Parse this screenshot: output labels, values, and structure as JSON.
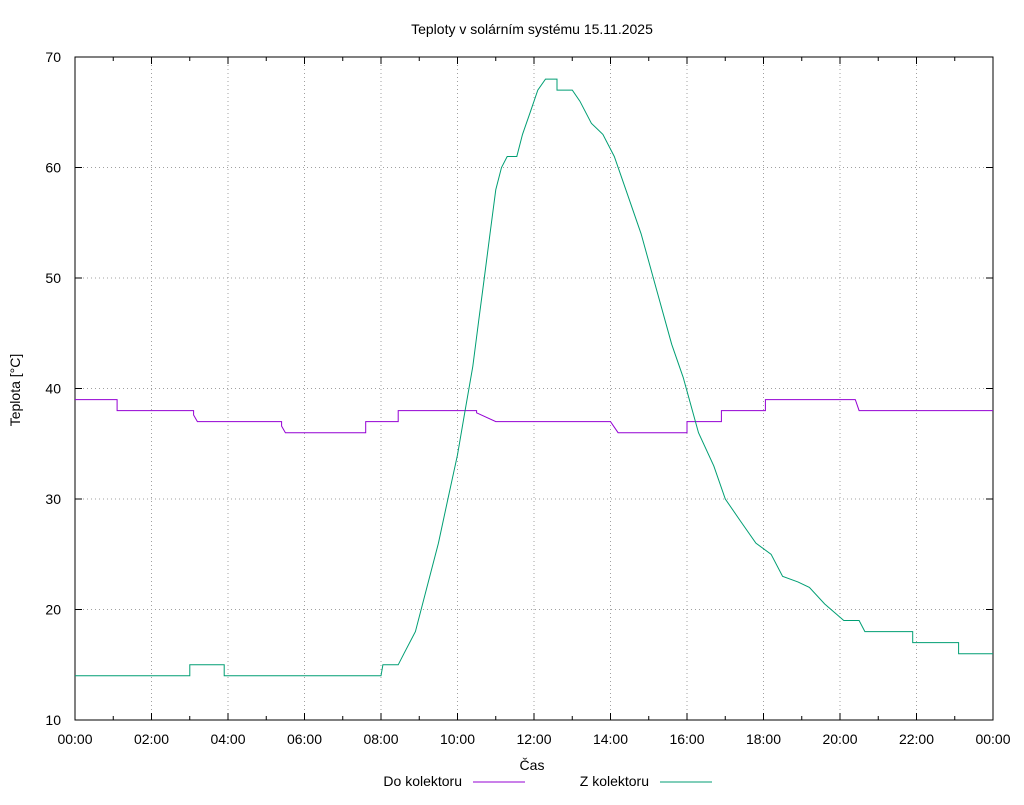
{
  "chart_data": {
    "type": "line",
    "title": "Teploty v solárním systému 15.11.2025",
    "xlabel": "Čas",
    "ylabel": "Teplota [°C]",
    "xlim": [
      0,
      24
    ],
    "ylim": [
      10,
      70
    ],
    "grid": true,
    "legend_position": "bottom-center",
    "x_ticks": [
      0,
      2,
      4,
      6,
      8,
      10,
      12,
      14,
      16,
      18,
      20,
      22,
      24
    ],
    "x_tick_labels": [
      "00:00",
      "02:00",
      "04:00",
      "06:00",
      "08:00",
      "10:00",
      "12:00",
      "14:00",
      "16:00",
      "18:00",
      "20:00",
      "22:00",
      "00:00"
    ],
    "y_ticks": [
      10,
      20,
      30,
      40,
      50,
      60,
      70
    ],
    "y_tick_labels": [
      "10",
      "20",
      "30",
      "40",
      "50",
      "60",
      "70"
    ],
    "series": [
      {
        "name": "Do kolektoru",
        "color": "#9400d3",
        "points": [
          [
            0,
            39
          ],
          [
            1.1,
            39
          ],
          [
            1.1,
            38
          ],
          [
            3.1,
            38
          ],
          [
            3.1,
            37.6
          ],
          [
            3.2,
            37
          ],
          [
            5.4,
            37
          ],
          [
            5.4,
            36.6
          ],
          [
            5.5,
            36
          ],
          [
            7.6,
            36
          ],
          [
            7.6,
            37
          ],
          [
            8.45,
            37
          ],
          [
            8.45,
            38
          ],
          [
            10.5,
            38
          ],
          [
            10.5,
            37.8
          ],
          [
            11.0,
            37
          ],
          [
            14.0,
            37
          ],
          [
            14.1,
            36.5
          ],
          [
            14.2,
            36
          ],
          [
            16.0,
            36
          ],
          [
            16.0,
            37
          ],
          [
            16.9,
            37
          ],
          [
            16.9,
            38
          ],
          [
            18.05,
            38
          ],
          [
            18.05,
            39
          ],
          [
            20.4,
            39
          ],
          [
            20.5,
            38
          ],
          [
            24,
            38
          ]
        ]
      },
      {
        "name": "Z kolektoru",
        "color": "#009e73",
        "points": [
          [
            0,
            14
          ],
          [
            3.0,
            14
          ],
          [
            3.0,
            15
          ],
          [
            3.9,
            15
          ],
          [
            3.9,
            14
          ],
          [
            8.0,
            14
          ],
          [
            8.05,
            15
          ],
          [
            8.45,
            15
          ],
          [
            8.6,
            16
          ],
          [
            8.9,
            18
          ],
          [
            9.2,
            22
          ],
          [
            9.5,
            26
          ],
          [
            9.75,
            30
          ],
          [
            10.0,
            34
          ],
          [
            10.2,
            38
          ],
          [
            10.4,
            42
          ],
          [
            10.55,
            46
          ],
          [
            10.7,
            50
          ],
          [
            10.85,
            54
          ],
          [
            11.0,
            58
          ],
          [
            11.15,
            60
          ],
          [
            11.3,
            61
          ],
          [
            11.55,
            61
          ],
          [
            11.7,
            63
          ],
          [
            11.9,
            65
          ],
          [
            12.1,
            67
          ],
          [
            12.3,
            68
          ],
          [
            12.6,
            68
          ],
          [
            12.6,
            67
          ],
          [
            13.0,
            67
          ],
          [
            13.2,
            66
          ],
          [
            13.5,
            64
          ],
          [
            13.8,
            63
          ],
          [
            14.1,
            61
          ],
          [
            14.4,
            58
          ],
          [
            14.8,
            54
          ],
          [
            15.2,
            49
          ],
          [
            15.6,
            44
          ],
          [
            15.9,
            41
          ],
          [
            16.3,
            36
          ],
          [
            16.7,
            33
          ],
          [
            17.0,
            30
          ],
          [
            17.4,
            28
          ],
          [
            17.8,
            26
          ],
          [
            18.2,
            25
          ],
          [
            18.5,
            23
          ],
          [
            18.9,
            22.5
          ],
          [
            19.2,
            22
          ],
          [
            19.6,
            20.5
          ],
          [
            20.1,
            19
          ],
          [
            20.5,
            19
          ],
          [
            20.65,
            18
          ],
          [
            21.9,
            18
          ],
          [
            21.9,
            17
          ],
          [
            23.1,
            17
          ],
          [
            23.1,
            16
          ],
          [
            24,
            16
          ]
        ]
      }
    ]
  }
}
